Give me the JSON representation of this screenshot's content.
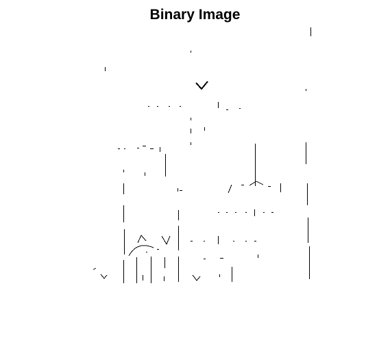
{
  "figure": {
    "title": "Binary Image"
  },
  "image": {
    "kind": "binary-image",
    "background_color": "#ffffff",
    "foreground_color": "#000000"
  }
}
